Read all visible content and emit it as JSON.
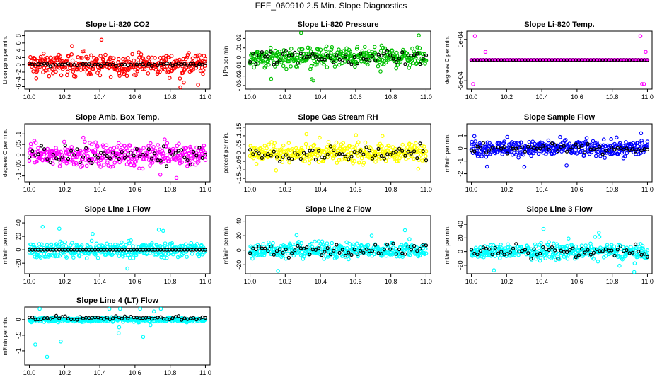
{
  "figure_title": "FEF_060910  2.5 Min. Slope Diagnostics",
  "chart_data": [
    {
      "type": "scatter",
      "title": "Slope Li-820 CO2",
      "ylabel": "Li cor ppm per min.",
      "xlim": [
        10.0,
        11.0
      ],
      "ylim": [
        -6.2,
        8.8
      ],
      "xticks": [
        10.0,
        10.2,
        10.4,
        10.6,
        10.8,
        11.0
      ],
      "yticks": [
        -6,
        -4,
        -2,
        0,
        2,
        4,
        6,
        8
      ],
      "series": [
        {
          "name": "points",
          "color": "#ff0000",
          "spread": 2.4,
          "outlier": 7.5
        },
        {
          "name": "black",
          "color": "#000000",
          "level": 0.1,
          "spread": 0.35
        }
      ]
    },
    {
      "type": "scatter",
      "title": "Slope Li-820 Pressure",
      "ylabel": "kPa per min.",
      "xlim": [
        10.0,
        11.0
      ],
      "ylim": [
        -0.032,
        0.026
      ],
      "xticks": [
        10.0,
        10.2,
        10.4,
        10.6,
        10.8,
        11.0
      ],
      "yticks": [
        -0.03,
        -0.02,
        -0.01,
        0.0,
        0.01,
        0.02
      ],
      "series": [
        {
          "name": "points",
          "color": "#00c000",
          "spread": 0.009,
          "outlier": 0.028
        },
        {
          "name": "black",
          "color": "#000000",
          "level": 0.0,
          "spread": 0.007
        }
      ]
    },
    {
      "type": "scatter",
      "title": "Slope Li-820 Temp.",
      "ylabel": "degrees C per min.",
      "xlim": [
        10.0,
        11.0
      ],
      "ylim": [
        -0.00066,
        0.00066
      ],
      "xticks": [
        10.0,
        10.2,
        10.4,
        10.6,
        10.8,
        11.0
      ],
      "yticks": [
        -0.0005,
        0.0005
      ],
      "ytick_labels": [
        "-5e-04",
        "5e-04"
      ],
      "series": [
        {
          "name": "points",
          "color": "#ff00ff",
          "spread": 0.0,
          "outlier": 0.0005
        },
        {
          "name": "black",
          "color": "#000000",
          "level": 0.0,
          "spread": 0.0
        }
      ]
    },
    {
      "type": "scatter",
      "title": "Slope Amb. Box Temp.",
      "ylabel": "degrees C per min.",
      "xlim": [
        10.0,
        11.0
      ],
      "ylim": [
        -0.12,
        0.14
      ],
      "xticks": [
        10.0,
        10.2,
        10.4,
        10.6,
        10.8,
        11.0
      ],
      "yticks": [
        -0.1,
        -0.05,
        0.0,
        0.05,
        0.1
      ],
      "series": [
        {
          "name": "points",
          "color": "#ff00ff",
          "spread": 0.045,
          "outlier": 0.11
        },
        {
          "name": "black",
          "color": "#000000",
          "level": 0.0,
          "spread": 0.04
        }
      ]
    },
    {
      "type": "scatter",
      "title": "Slope Gas Stream RH",
      "ylabel": "percent per min.",
      "xlim": [
        10.0,
        11.0
      ],
      "ylim": [
        -0.16,
        0.16
      ],
      "xticks": [
        10.0,
        10.2,
        10.4,
        10.6,
        10.8,
        11.0
      ],
      "yticks": [
        -0.15,
        -0.1,
        -0.05,
        0.0,
        0.05,
        0.1,
        0.15
      ],
      "series": [
        {
          "name": "points",
          "color": "#ffff00",
          "spread": 0.045,
          "outlier": 0.12
        },
        {
          "name": "black",
          "color": "#000000",
          "level": 0.0,
          "spread": 0.035
        }
      ]
    },
    {
      "type": "scatter",
      "title": "Slope Sample Flow",
      "ylabel": "ml/min per min.",
      "xlim": [
        10.0,
        11.0
      ],
      "ylim": [
        -2.5,
        1.8
      ],
      "xticks": [
        10.0,
        10.2,
        10.4,
        10.6,
        10.8,
        11.0
      ],
      "yticks": [
        -2,
        -1,
        0,
        1
      ],
      "series": [
        {
          "name": "points",
          "color": "#0000ff",
          "spread": 0.55,
          "outlier": 1.5
        },
        {
          "name": "black",
          "color": "#000000",
          "level": 0.0,
          "spread": 0.3
        }
      ]
    },
    {
      "type": "scatter",
      "title": "Slope Line 1 Flow",
      "ylabel": "ml/min per min.",
      "xlim": [
        10.0,
        11.0
      ],
      "ylim": [
        -33,
        48
      ],
      "xticks": [
        10.0,
        10.2,
        10.4,
        10.6,
        10.8,
        11.0
      ],
      "yticks": [
        -20,
        0,
        20,
        40
      ],
      "series": [
        {
          "name": "points",
          "color": "#00ffff",
          "spread": 10,
          "outlier": 36
        },
        {
          "name": "black",
          "color": "#000000",
          "level": 0.0,
          "spread": 0.0
        }
      ]
    },
    {
      "type": "scatter",
      "title": "Slope Line 2 Flow",
      "ylabel": "ml/min per min.",
      "xlim": [
        10.0,
        11.0
      ],
      "ylim": [
        -30,
        45
      ],
      "xticks": [
        10.0,
        10.2,
        10.4,
        10.6,
        10.8,
        11.0
      ],
      "yticks": [
        -20,
        0,
        20,
        40
      ],
      "series": [
        {
          "name": "points",
          "color": "#00ffff",
          "spread": 9,
          "outlier": 33
        },
        {
          "name": "black",
          "color": "#000000",
          "level": 0.0,
          "spread": 8
        }
      ]
    },
    {
      "type": "scatter",
      "title": "Slope Line 3 Flow",
      "ylabel": "ml/min per min.",
      "xlim": [
        10.0,
        11.0
      ],
      "ylim": [
        -30,
        50
      ],
      "xticks": [
        10.0,
        10.2,
        10.4,
        10.6,
        10.8,
        11.0
      ],
      "yticks": [
        -20,
        0,
        20,
        40
      ],
      "series": [
        {
          "name": "points",
          "color": "#00ffff",
          "spread": 9,
          "outlier": 35
        },
        {
          "name": "black",
          "color": "#000000",
          "level": 0.0,
          "spread": 8
        }
      ]
    },
    {
      "type": "scatter",
      "title": "Slope Line 4 (LT) Flow",
      "ylabel": "ml/min per min.",
      "xlim": [
        10.0,
        11.0
      ],
      "ylim": [
        -1.4,
        0.35
      ],
      "xticks": [
        10.0,
        10.2,
        10.4,
        10.6,
        10.8,
        11.0
      ],
      "yticks": [
        -1.0,
        -0.5,
        0.0
      ],
      "series": [
        {
          "name": "points",
          "color": "#00ffff",
          "spread": 0.06,
          "outlier": -1.2
        },
        {
          "name": "black",
          "color": "#000000",
          "level": 0.05,
          "spread": 0.06
        }
      ]
    }
  ]
}
